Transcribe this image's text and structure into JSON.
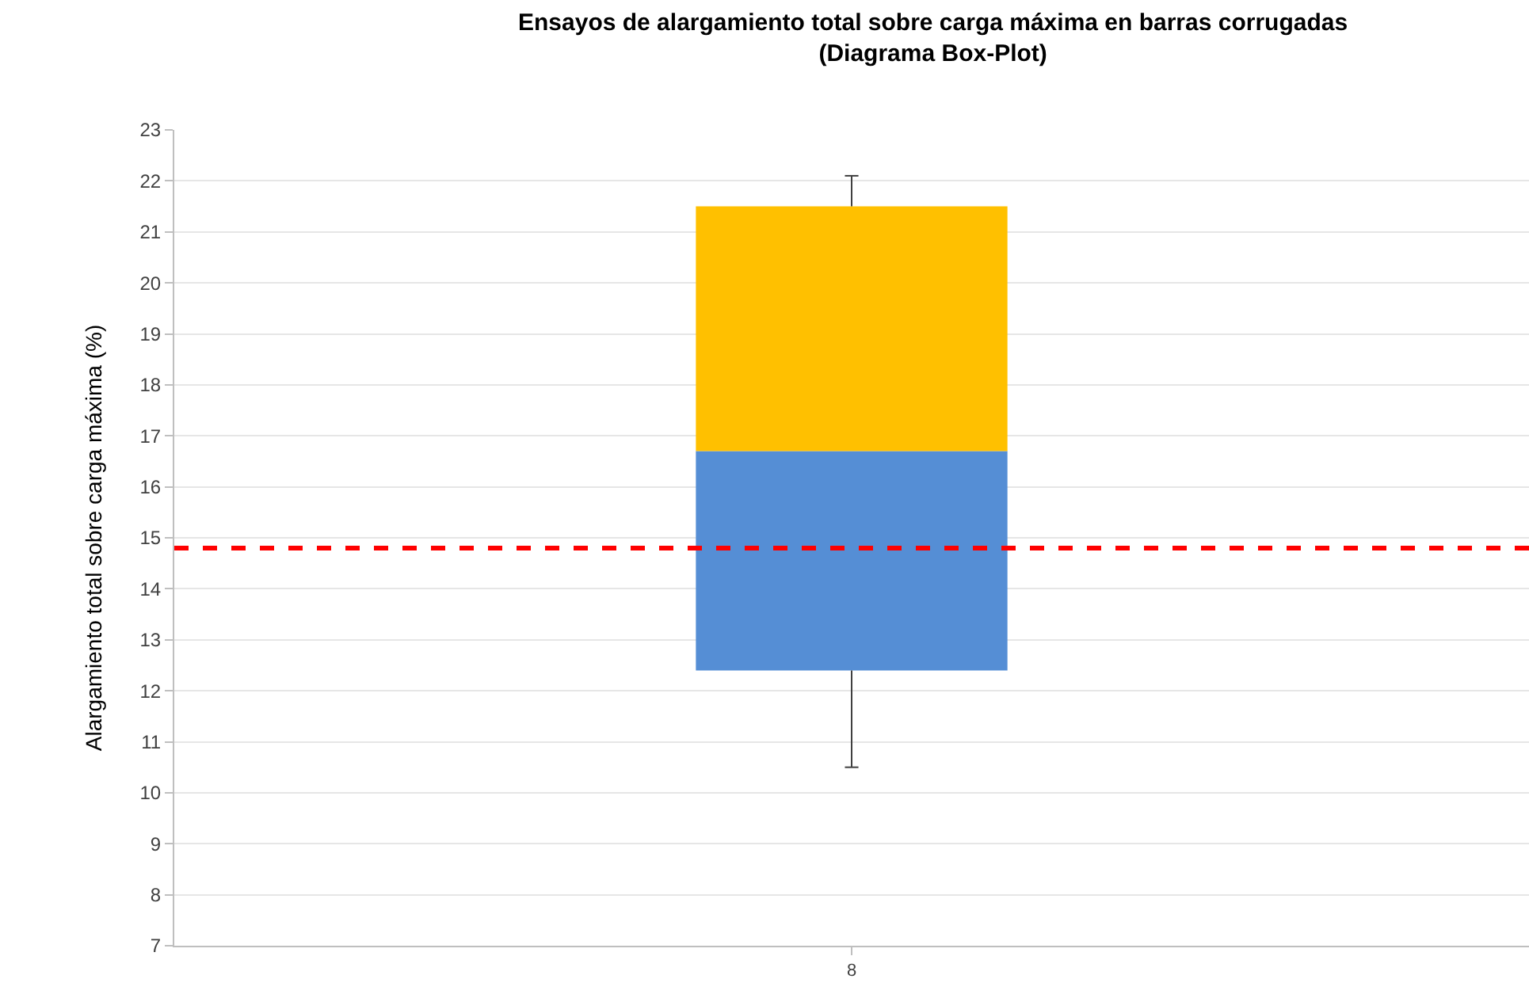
{
  "chart_data": {
    "type": "box",
    "title": "Ensayos de alargamiento total sobre carga máxima en barras corrugadas\n(Diagrama Box-Plot)",
    "ylabel": "Alargamiento total sobre carga máxima (%)",
    "categories": [
      "8"
    ],
    "color": "#ffc000",
    "series": [
      {
        "color": "#558ed5",
        "boxes": [
          {
            "low": 10.5,
            "q1": 12.4,
            "median": 16.7,
            "q3": 21.5,
            "high": 22.1
          }
        ]
      }
    ],
    "ylim": [
      7,
      23
    ],
    "yticks": [
      7,
      8,
      9,
      10,
      11,
      12,
      13,
      14,
      15,
      16,
      17,
      18,
      19,
      20,
      21,
      22,
      23
    ],
    "grid": "y",
    "ref_lines": [
      {
        "axis": "y",
        "value": 14.8,
        "color": "#ff0000",
        "line_style": "dashed"
      }
    ]
  }
}
